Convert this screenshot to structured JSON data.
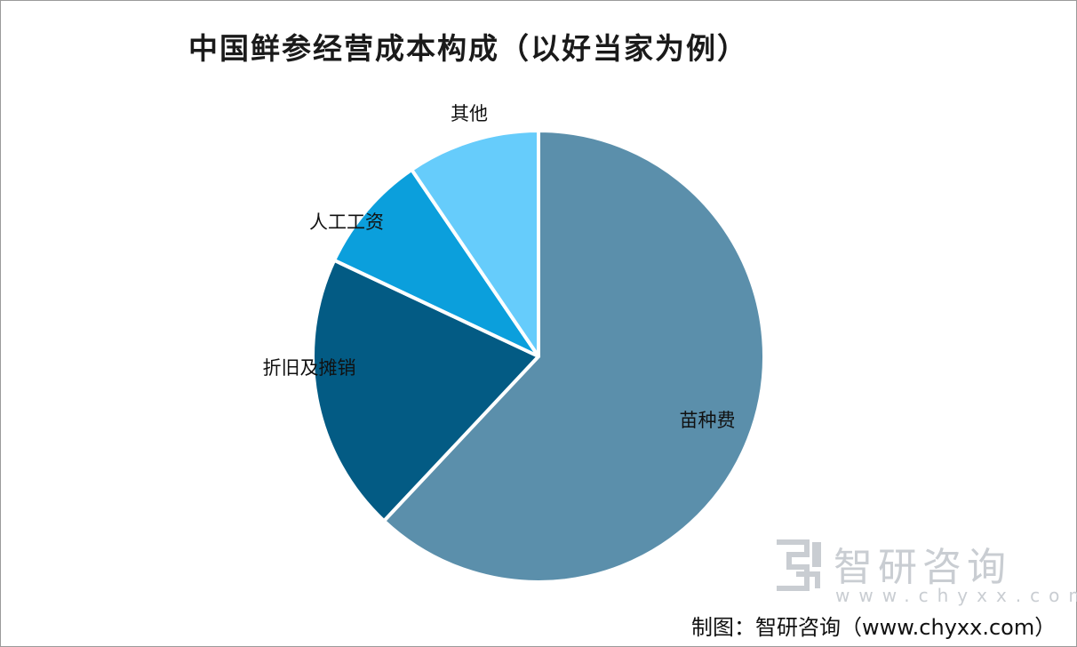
{
  "chart_data": {
    "type": "pie",
    "title": "中国鲜参经营成本构成（以好当家为例）",
    "slices": [
      {
        "label": "苗种费",
        "value": 62,
        "color": "#5b8fab"
      },
      {
        "label": "折旧及摊销",
        "value": 20,
        "color": "#035b84"
      },
      {
        "label": "人工工资",
        "value": 8.5,
        "color": "#0b9fdc"
      },
      {
        "label": "其他",
        "value": 9.5,
        "color": "#66ccfb"
      }
    ],
    "start": "12 o'clock",
    "direction": "clockwise"
  },
  "watermark": {
    "name": "智研咨询",
    "url": "www.chyxx.com"
  },
  "credit": "制图：智研咨询（www.chyxx.com）"
}
